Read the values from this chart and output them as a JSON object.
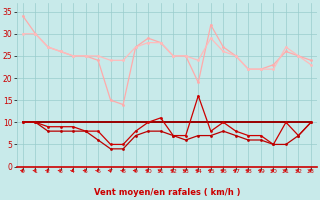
{
  "x": [
    0,
    1,
    2,
    3,
    4,
    5,
    6,
    7,
    8,
    9,
    10,
    11,
    12,
    13,
    14,
    15,
    16,
    17,
    18,
    19,
    20,
    21,
    22,
    23
  ],
  "gust1": [
    34,
    30,
    27,
    26,
    25,
    25,
    24,
    15,
    14,
    27,
    29,
    28,
    25,
    25,
    19,
    32,
    27,
    25,
    22,
    22,
    23,
    26,
    25,
    24
  ],
  "gust2": [
    30,
    30,
    27,
    26,
    25,
    25,
    25,
    24,
    24,
    27,
    28,
    28,
    25,
    25,
    24,
    29,
    26,
    25,
    22,
    22,
    22,
    27,
    25,
    23
  ],
  "avg1": [
    10,
    10,
    9,
    9,
    9,
    8,
    8,
    5,
    5,
    8,
    10,
    11,
    7,
    7,
    16,
    8,
    10,
    8,
    7,
    7,
    5,
    10,
    7,
    10
  ],
  "avg2": [
    10,
    10,
    8,
    8,
    8,
    8,
    6,
    4,
    4,
    7,
    8,
    8,
    7,
    6,
    7,
    7,
    8,
    7,
    6,
    6,
    5,
    5,
    7,
    10
  ],
  "const1": [
    10,
    10,
    10,
    10,
    10,
    10,
    10,
    10,
    10,
    10,
    10,
    10,
    10,
    10,
    10,
    10,
    10,
    10,
    10,
    10,
    10,
    10,
    10,
    10
  ],
  "bg_color": "#c8eaea",
  "grid_color": "#99cccc",
  "gust1_color": "#ffaaaa",
  "gust2_color": "#ffbbbb",
  "avg1_color": "#cc0000",
  "avg2_color": "#bb0000",
  "const_color": "#990000",
  "xlabel": "Vent moyen/en rafales ( km/h )",
  "ylim": [
    0,
    37
  ],
  "yticks": [
    0,
    5,
    10,
    15,
    20,
    25,
    30,
    35
  ],
  "arrow_color": "#dd0000",
  "axis_color": "#cc0000"
}
